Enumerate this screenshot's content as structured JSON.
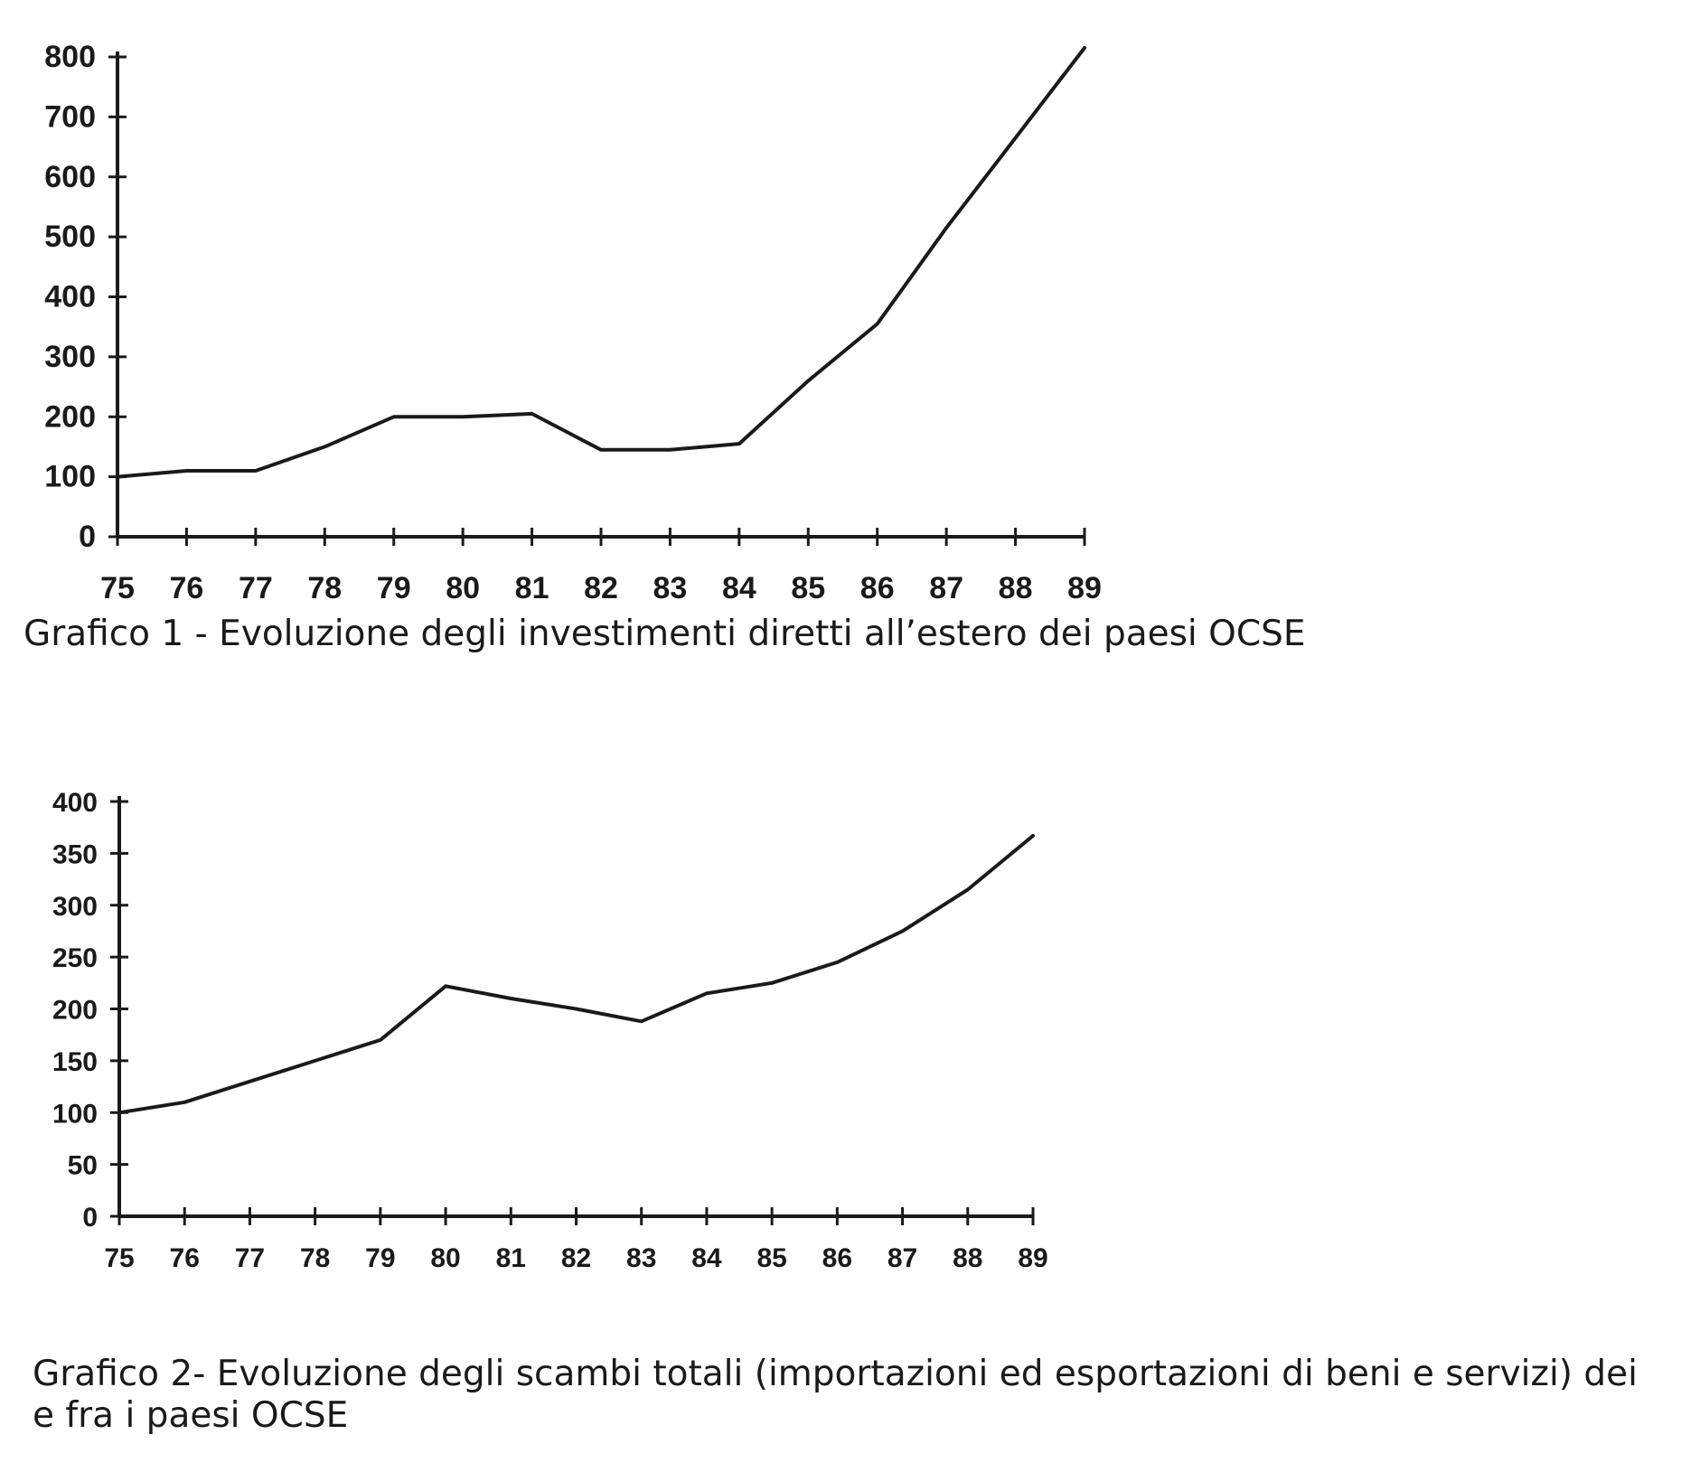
{
  "chart_data": [
    {
      "type": "line",
      "caption": "Grafico 1 - Evoluzione degli investimenti diretti all’estero dei paesi OCSE",
      "x": [
        "75",
        "76",
        "77",
        "78",
        "79",
        "80",
        "81",
        "82",
        "83",
        "84",
        "85",
        "86",
        "87",
        "88",
        "89"
      ],
      "series": [
        {
          "values": [
            100,
            110,
            110,
            150,
            200,
            200,
            205,
            145,
            145,
            155,
            260,
            355,
            515,
            665,
            815
          ]
        }
      ],
      "yticks": [
        "0",
        "100",
        "200",
        "300",
        "400",
        "500",
        "600",
        "700",
        "800"
      ],
      "ylim": [
        0,
        800
      ],
      "grid": false,
      "legend": "none"
    },
    {
      "type": "line",
      "caption": "Grafico 2- Evoluzione degli scambi totali (importazioni ed esportazioni di beni e servizi) dei e fra i paesi OCSE",
      "x": [
        "75",
        "76",
        "77",
        "78",
        "79",
        "80",
        "81",
        "82",
        "83",
        "84",
        "85",
        "86",
        "87",
        "88",
        "89"
      ],
      "series": [
        {
          "values": [
            100,
            110,
            130,
            150,
            170,
            222,
            210,
            200,
            188,
            215,
            225,
            245,
            275,
            315,
            367
          ]
        }
      ],
      "yticks": [
        "0",
        "50",
        "100",
        "150",
        "200",
        "250",
        "300",
        "350",
        "400"
      ],
      "ylim": [
        0,
        400
      ],
      "grid": false,
      "legend": "none"
    }
  ],
  "colors": {
    "ink": "#1a1a1a",
    "background": "#ffffff"
  }
}
